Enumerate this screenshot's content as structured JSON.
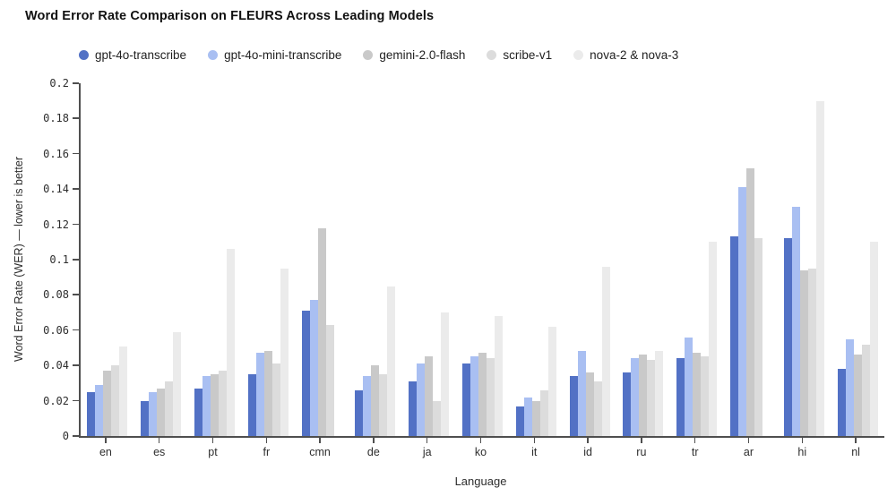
{
  "title": "Word Error Rate Comparison on FLEURS Across Leading Models",
  "chart_data": {
    "type": "bar",
    "title": "Word Error Rate Comparison on FLEURS Across Leading Models",
    "xlabel": "Language",
    "ylabel": "Word Error Rate (WER) — lower is better",
    "ylim": [
      0,
      0.2
    ],
    "ytick_step": 0.02,
    "yticks": [
      "0",
      "0.02",
      "0.04",
      "0.06",
      "0.08",
      "0.1",
      "0.12",
      "0.14",
      "0.16",
      "0.18",
      "0.2"
    ],
    "grid": false,
    "legend_position": "top-left",
    "categories": [
      "en",
      "es",
      "pt",
      "fr",
      "cmn",
      "de",
      "ja",
      "ko",
      "it",
      "id",
      "ru",
      "tr",
      "ar",
      "hi",
      "nl"
    ],
    "series": [
      {
        "name": "gpt-4o-transcribe",
        "color": "#5271c5",
        "values": [
          0.025,
          0.02,
          0.027,
          0.035,
          0.071,
          0.026,
          0.031,
          0.041,
          0.017,
          0.034,
          0.036,
          0.044,
          0.113,
          0.112,
          0.038
        ]
      },
      {
        "name": "gpt-4o-mini-transcribe",
        "color": "#a9bff2",
        "values": [
          0.029,
          0.025,
          0.034,
          0.047,
          0.077,
          0.034,
          0.041,
          0.045,
          0.022,
          0.048,
          0.044,
          0.056,
          0.141,
          0.13,
          0.055
        ]
      },
      {
        "name": "gemini-2.0-flash",
        "color": "#c9c9c9",
        "values": [
          0.037,
          0.027,
          0.035,
          0.048,
          0.118,
          0.04,
          0.045,
          0.047,
          0.02,
          0.036,
          0.046,
          0.047,
          0.152,
          0.094,
          0.046
        ]
      },
      {
        "name": "scribe-v1",
        "color": "#dcdcdc",
        "values": [
          0.04,
          0.031,
          0.037,
          0.041,
          0.063,
          0.035,
          0.02,
          0.044,
          0.026,
          0.031,
          0.043,
          0.045,
          0.112,
          0.095,
          0.052
        ]
      },
      {
        "name": "nova-2 & nova-3",
        "color": "#ebebeb",
        "values": [
          0.051,
          0.059,
          0.106,
          0.095,
          null,
          0.085,
          0.07,
          0.068,
          0.062,
          0.096,
          0.048,
          0.11,
          null,
          0.19,
          0.11
        ]
      }
    ]
  }
}
